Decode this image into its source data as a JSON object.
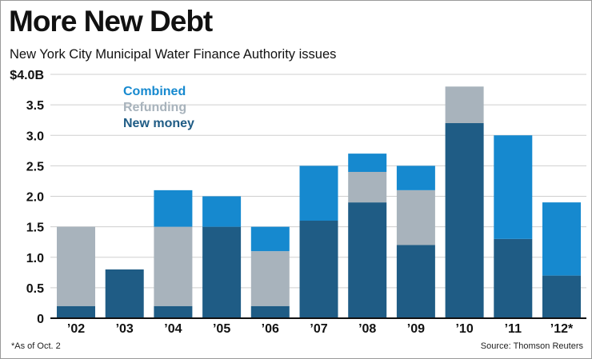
{
  "header": {
    "title": "More New Debt",
    "subtitle": "New York City Municipal Water Finance Authority issues"
  },
  "footer": {
    "note": "*As of Oct. 2",
    "source": "Source: Thomson Reuters"
  },
  "colors": {
    "new_money": "#1f5c85",
    "refunding": "#a8b3bc",
    "combined": "#1689cf",
    "gridline": "#cfcfcf",
    "axis": "#111111",
    "text": "#111111"
  },
  "chart_data": {
    "type": "bar",
    "stacked": true,
    "title": "More New Debt",
    "subtitle": "New York City Municipal Water Finance Authority issues",
    "xlabel": "",
    "ylabel": "",
    "ylim": [
      0,
      4.0
    ],
    "yticks": [
      0,
      0.5,
      1.0,
      1.5,
      2.0,
      2.5,
      3.0,
      3.5,
      4.0
    ],
    "ytick_labels": [
      "0",
      "0.5",
      "1.0",
      "1.5",
      "2.0",
      "2.5",
      "3.0",
      "3.5",
      "$4.0B"
    ],
    "categories": [
      "’02",
      "’03",
      "’04",
      "’05",
      "’06",
      "’07",
      "’08",
      "’09",
      "’10",
      "’11",
      "’12*"
    ],
    "legend": [
      "Combined",
      "Refunding",
      "New money"
    ],
    "legend_position": "top-left",
    "grid": true,
    "series": [
      {
        "name": "New money",
        "values": [
          0.2,
          0.8,
          0.2,
          1.5,
          0.2,
          1.6,
          1.9,
          1.2,
          3.2,
          1.3,
          0.7
        ]
      },
      {
        "name": "Refunding",
        "values": [
          1.3,
          0,
          1.3,
          0,
          0.9,
          0,
          0.5,
          0.9,
          0.6,
          0,
          0
        ]
      },
      {
        "name": "Combined",
        "values": [
          0,
          0,
          0.6,
          0.5,
          0.4,
          0.9,
          0.3,
          0.4,
          0,
          1.7,
          1.2
        ]
      }
    ]
  }
}
